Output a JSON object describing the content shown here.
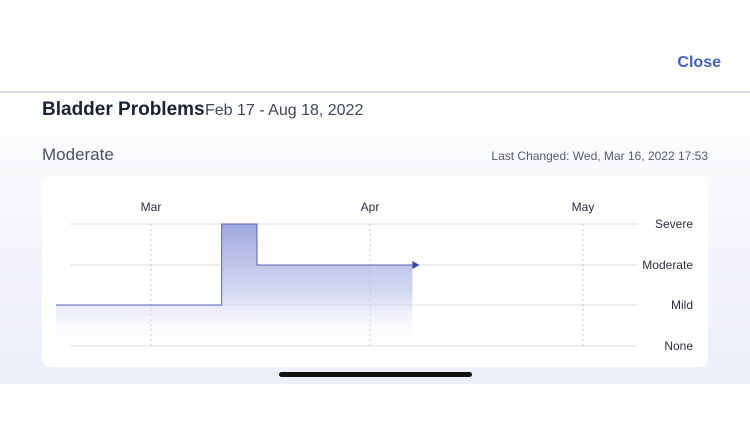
{
  "header": {
    "close_label": "Close"
  },
  "symptom": {
    "name": "Bladder Problems",
    "date_range": "Feb 17 - Aug 18, 2022",
    "current_severity": "Moderate",
    "last_changed": "Last Changed: Wed, Mar 16, 2022 17:53"
  },
  "colors": {
    "accent": "#4361c2",
    "fill": "#9aa3dd",
    "line": "#4a57b5"
  },
  "chart_data": {
    "type": "area",
    "step": true,
    "x_tick_labels": [
      "Mar",
      "Apr",
      "May"
    ],
    "y_categories": [
      "None",
      "Mild",
      "Moderate",
      "Severe"
    ],
    "y_tick_labels": [
      "Severe",
      "Moderate",
      "Mild",
      "None"
    ],
    "x_range": [
      "2022-02-17",
      "2022-05-20"
    ],
    "series": [
      {
        "points": [
          {
            "x": "2022-02-17",
            "y": "Mild"
          },
          {
            "x": "2022-03-11",
            "y": "Severe"
          },
          {
            "x": "2022-03-16",
            "y": "Moderate"
          },
          {
            "x": "2022-04-07",
            "y": "Moderate"
          }
        ]
      }
    ],
    "grid": true,
    "end_marker": "arrow"
  }
}
